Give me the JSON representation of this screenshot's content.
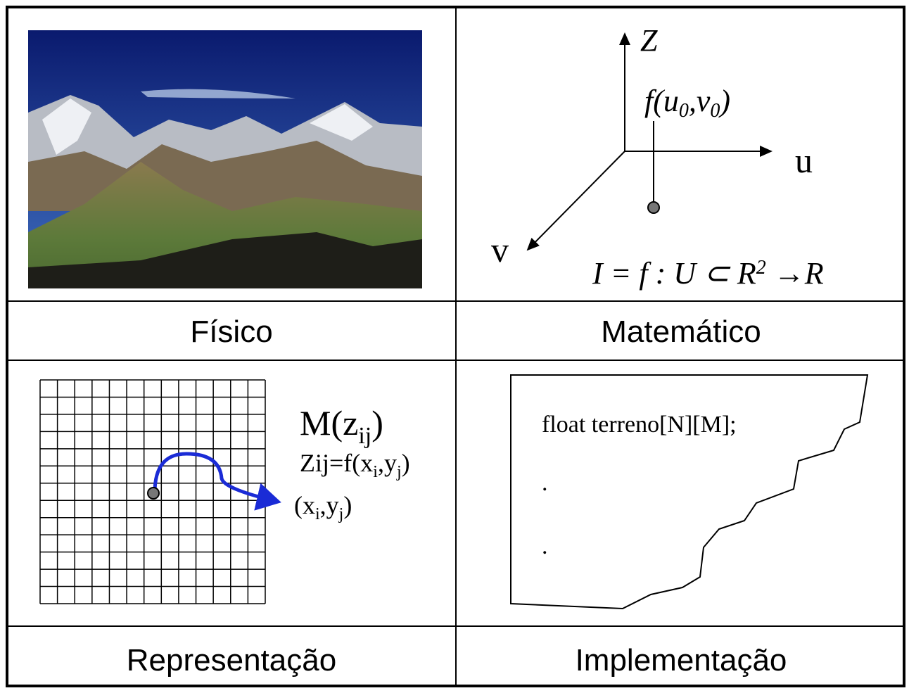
{
  "panels": {
    "fisico": {
      "caption": "Físico"
    },
    "matematico": {
      "caption": "Matemático",
      "axis_z": "Z",
      "axis_u": "u",
      "axis_v": "v",
      "point_label": [
        "f(u",
        "0",
        ",v",
        "0",
        ")"
      ],
      "formula": [
        "I = f : U ⊂ R",
        "2",
        " →R"
      ]
    },
    "representacao": {
      "caption": "Representação",
      "matrix_label": [
        "M(z",
        "ij",
        ")"
      ],
      "function_label": [
        "Zij=f(x",
        "i",
        ",y",
        "j",
        ")"
      ],
      "point_label": [
        "(x",
        "i",
        ",y",
        "j",
        ")"
      ]
    },
    "implementacao": {
      "caption": "Implementação",
      "code": "float terreno[N][M];",
      "ellipsis": [
        ".",
        "."
      ]
    }
  }
}
